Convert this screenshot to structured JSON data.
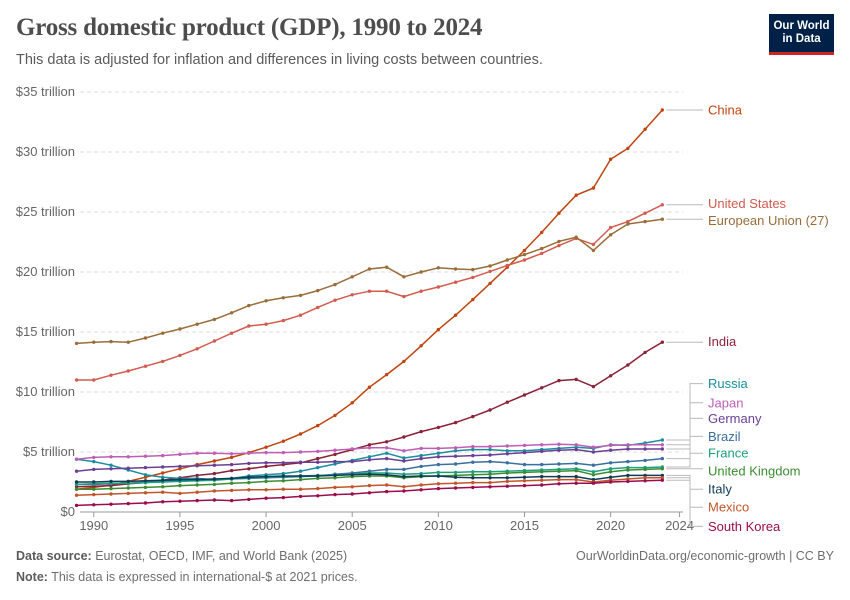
{
  "header": {
    "title": "Gross domestic product (GDP), 1990 to 2024",
    "subtitle": "This data is adjusted for inflation and differences in living costs between countries."
  },
  "logo": {
    "line1": "Our World",
    "line2": "in Data"
  },
  "footer": {
    "source_label": "Data source:",
    "source_text": "Eurostat, OECD, IMF, and World Bank (2025)",
    "note_label": "Note:",
    "note_text": "This data is expressed in international-$ at 2021 prices.",
    "link": "OurWorldinData.org/economic-growth | CC BY"
  },
  "chart_data": {
    "type": "line",
    "title": "Gross domestic product (GDP), 1990 to 2024",
    "ylim": [
      0,
      35
    ],
    "xlim": [
      1989.2,
      2024.2
    ],
    "yticks": [
      0,
      5,
      10,
      15,
      20,
      25,
      30,
      35
    ],
    "ytick_labels": [
      "$0",
      "$5 trillion",
      "$10 trillion",
      "$15 trillion",
      "$20 trillion",
      "$25 trillion",
      "$30 trillion",
      "$35 trillion"
    ],
    "xticks": [
      1990,
      1995,
      2000,
      2005,
      2010,
      2015,
      2020,
      2024
    ],
    "xtick_labels": [
      "1990",
      "1995",
      "2000",
      "2005",
      "2010",
      "2015",
      "2020",
      "2024"
    ],
    "grid": true,
    "series": [
      {
        "name": "China",
        "color": "#c1440e",
        "start": 1989,
        "label_value": 33.5,
        "values": [
          1.9,
          2.05,
          2.25,
          2.55,
          2.9,
          3.25,
          3.6,
          3.95,
          4.25,
          4.55,
          4.95,
          5.4,
          5.9,
          6.5,
          7.2,
          8.05,
          9.1,
          10.4,
          11.45,
          12.55,
          13.85,
          15.2,
          16.4,
          17.7,
          19.05,
          20.4,
          21.8,
          23.3,
          24.9,
          26.4,
          27.0,
          29.4,
          30.3,
          31.9,
          33.5
        ]
      },
      {
        "name": "United States",
        "color": "#d35b4e",
        "start": 1989,
        "label_value": 25.7,
        "values": [
          11.0,
          11.0,
          11.4,
          11.75,
          12.15,
          12.55,
          13.05,
          13.6,
          14.25,
          14.9,
          15.5,
          15.65,
          15.95,
          16.4,
          17.05,
          17.65,
          18.1,
          18.4,
          18.4,
          17.95,
          18.4,
          18.75,
          19.15,
          19.55,
          20.05,
          20.55,
          21.0,
          21.55,
          22.2,
          22.8,
          22.3,
          23.7,
          24.2,
          24.9,
          25.6
        ]
      },
      {
        "name": "European Union (27)",
        "color": "#996d39",
        "start": 1989,
        "label_value": 24.3,
        "values": [
          14.05,
          14.15,
          14.2,
          14.15,
          14.5,
          14.9,
          15.25,
          15.65,
          16.05,
          16.6,
          17.2,
          17.6,
          17.85,
          18.05,
          18.45,
          18.95,
          19.6,
          20.25,
          20.4,
          19.6,
          20.0,
          20.35,
          20.25,
          20.2,
          20.5,
          21.0,
          21.45,
          21.95,
          22.55,
          22.9,
          21.8,
          23.1,
          24.0,
          24.2,
          24.4
        ]
      },
      {
        "name": "India",
        "color": "#8b2238",
        "start": 1989,
        "label_value": 14.2,
        "values": [
          2.1,
          2.15,
          2.2,
          2.35,
          2.45,
          2.65,
          2.85,
          3.05,
          3.2,
          3.45,
          3.6,
          3.8,
          3.95,
          4.1,
          4.45,
          4.8,
          5.2,
          5.6,
          5.85,
          6.25,
          6.7,
          7.05,
          7.45,
          7.95,
          8.5,
          9.15,
          9.75,
          10.35,
          10.95,
          11.05,
          10.45,
          11.35,
          12.25,
          13.3,
          14.15
        ]
      },
      {
        "name": "Russia",
        "color": "#1a8e9e",
        "start": 1989,
        "label_value": 10.7,
        "values": [
          4.4,
          4.2,
          3.9,
          3.5,
          3.1,
          2.9,
          2.8,
          2.8,
          2.7,
          2.8,
          3.0,
          3.1,
          3.2,
          3.4,
          3.7,
          4.0,
          4.3,
          4.6,
          4.9,
          4.5,
          4.7,
          4.9,
          5.1,
          5.2,
          5.2,
          5.1,
          5.1,
          5.2,
          5.3,
          5.4,
          5.3,
          5.6,
          5.55,
          5.75,
          6.0
        ]
      },
      {
        "name": "Japan",
        "color": "#c05eb4",
        "start": 1989,
        "label_value": 9.1,
        "values": [
          4.4,
          4.55,
          4.6,
          4.6,
          4.65,
          4.7,
          4.8,
          4.9,
          4.9,
          4.85,
          4.9,
          4.95,
          4.95,
          5.0,
          5.05,
          5.15,
          5.25,
          5.35,
          5.35,
          5.1,
          5.3,
          5.3,
          5.35,
          5.45,
          5.45,
          5.5,
          5.55,
          5.6,
          5.65,
          5.6,
          5.4,
          5.55,
          5.6,
          5.6,
          5.6
        ]
      },
      {
        "name": "Germany",
        "color": "#6a3f94",
        "start": 1989,
        "label_value": 7.8,
        "values": [
          3.4,
          3.55,
          3.6,
          3.65,
          3.7,
          3.75,
          3.8,
          3.85,
          3.9,
          3.95,
          4.05,
          4.1,
          4.1,
          4.15,
          4.15,
          4.2,
          4.2,
          4.35,
          4.45,
          4.25,
          4.45,
          4.6,
          4.65,
          4.7,
          4.75,
          4.85,
          4.95,
          5.05,
          5.15,
          5.2,
          5.0,
          5.15,
          5.25,
          5.25,
          5.25
        ]
      },
      {
        "name": "Brazil",
        "color": "#3a6f9e",
        "start": 1989,
        "label_value": 6.3,
        "values": [
          2.3,
          2.3,
          2.35,
          2.4,
          2.5,
          2.6,
          2.65,
          2.7,
          2.75,
          2.75,
          2.8,
          2.85,
          2.9,
          2.95,
          3.0,
          3.15,
          3.25,
          3.4,
          3.55,
          3.55,
          3.8,
          3.95,
          4.0,
          4.15,
          4.2,
          4.1,
          3.95,
          3.95,
          4.0,
          4.05,
          3.9,
          4.1,
          4.2,
          4.3,
          4.45
        ]
      },
      {
        "name": "France",
        "color": "#1aa17e",
        "start": 1989,
        "label_value": 4.9,
        "values": [
          2.3,
          2.35,
          2.4,
          2.4,
          2.45,
          2.5,
          2.55,
          2.6,
          2.65,
          2.75,
          2.85,
          2.9,
          2.95,
          3.0,
          3.05,
          3.1,
          3.15,
          3.25,
          3.25,
          3.15,
          3.2,
          3.3,
          3.3,
          3.35,
          3.35,
          3.4,
          3.45,
          3.5,
          3.55,
          3.6,
          3.35,
          3.6,
          3.7,
          3.7,
          3.75
        ]
      },
      {
        "name": "United Kingdom",
        "color": "#3c8c31",
        "start": 1989,
        "label_value": 3.4,
        "values": [
          1.9,
          1.9,
          1.95,
          2.0,
          2.05,
          2.1,
          2.2,
          2.25,
          2.3,
          2.4,
          2.45,
          2.55,
          2.6,
          2.7,
          2.8,
          2.85,
          2.95,
          3.0,
          3.0,
          2.85,
          2.95,
          3.0,
          3.05,
          3.1,
          3.15,
          3.25,
          3.3,
          3.35,
          3.4,
          3.45,
          3.1,
          3.35,
          3.5,
          3.55,
          3.6
        ]
      },
      {
        "name": "Italy",
        "color": "#103c58",
        "start": 1989,
        "label_value": 1.9,
        "values": [
          2.5,
          2.5,
          2.55,
          2.55,
          2.6,
          2.65,
          2.7,
          2.7,
          2.75,
          2.8,
          2.9,
          2.95,
          3.0,
          3.0,
          3.0,
          3.05,
          3.1,
          3.15,
          3.1,
          2.95,
          3.0,
          3.0,
          2.9,
          2.85,
          2.85,
          2.85,
          2.9,
          2.95,
          2.95,
          2.95,
          2.7,
          2.9,
          3.05,
          3.05,
          3.05
        ]
      },
      {
        "name": "Mexico",
        "color": "#c2562b",
        "start": 1989,
        "label_value": 0.4,
        "values": [
          1.4,
          1.45,
          1.5,
          1.55,
          1.6,
          1.65,
          1.55,
          1.65,
          1.75,
          1.8,
          1.85,
          1.85,
          1.9,
          1.9,
          1.95,
          2.05,
          2.1,
          2.2,
          2.25,
          2.1,
          2.25,
          2.35,
          2.4,
          2.45,
          2.45,
          2.55,
          2.6,
          2.65,
          2.7,
          2.7,
          2.5,
          2.65,
          2.75,
          2.85,
          2.85
        ]
      },
      {
        "name": "South Korea",
        "color": "#9a0c4e",
        "start": 1989,
        "label_value": -1.2,
        "values": [
          0.55,
          0.6,
          0.65,
          0.7,
          0.75,
          0.85,
          0.9,
          0.95,
          1.0,
          0.95,
          1.05,
          1.15,
          1.2,
          1.3,
          1.35,
          1.45,
          1.5,
          1.6,
          1.7,
          1.75,
          1.85,
          1.95,
          2.0,
          2.05,
          2.1,
          2.15,
          2.2,
          2.25,
          2.35,
          2.4,
          2.4,
          2.5,
          2.55,
          2.6,
          2.65
        ]
      }
    ]
  }
}
